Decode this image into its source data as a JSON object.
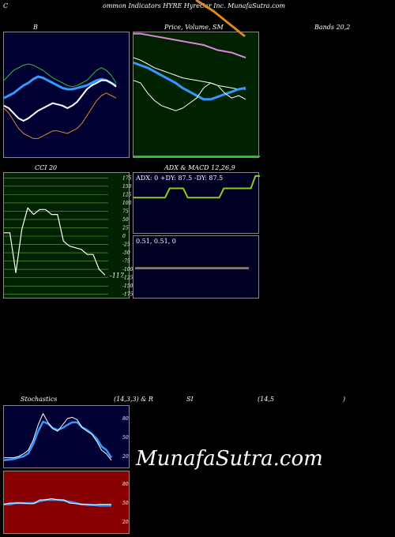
{
  "header": {
    "c": "C",
    "title": "ommon  Indicators HYRE HyreCar Inc. MunafaSutra.com",
    "b": "B",
    "price": "Price,  Volume,  SM",
    "bands": "Bands 20,2",
    "cci": "CCI 20",
    "adx": "ADX  & MACD 12,26,9",
    "stoch": "Stochastics",
    "stoch_params": "(14,3,3) & R",
    "si": "SI",
    "rsi_params": "(14,5",
    "close_paren": ")"
  },
  "watermark": "MunafaSutra.com",
  "colors": {
    "bb_bg": "#000033",
    "price_bg": "#002200",
    "cci_bg": "#002200",
    "adx_bg": "#000022",
    "stoch_bg": "#000033",
    "rsi_bg": "#880000",
    "white": "#ffffff",
    "blue": "#3399ff",
    "green": "#33bb33",
    "orange": "#dd8822",
    "pink": "#dd88dd",
    "yellow_green": "#88cc22"
  },
  "chart_data": [
    {
      "type": "line",
      "name_label": "B",
      "series": [
        {
          "values": [
            0.62,
            0.66,
            0.7,
            0.72,
            0.74,
            0.75,
            0.74,
            0.72,
            0.7,
            0.67,
            0.64,
            0.62,
            0.6,
            0.58,
            0.57,
            0.58,
            0.6,
            0.62,
            0.66,
            0.7,
            0.72,
            0.7,
            0.66,
            0.6
          ]
        },
        {
          "values": [
            0.48,
            0.5,
            0.52,
            0.55,
            0.58,
            0.6,
            0.63,
            0.65,
            0.64,
            0.62,
            0.6,
            0.58,
            0.56,
            0.55,
            0.55,
            0.56,
            0.57,
            0.58,
            0.6,
            0.62,
            0.63,
            0.62,
            0.6,
            0.58
          ]
        },
        {
          "values": [
            0.42,
            0.4,
            0.36,
            0.32,
            0.3,
            0.32,
            0.35,
            0.38,
            0.4,
            0.42,
            0.44,
            0.43,
            0.42,
            0.4,
            0.42,
            0.45,
            0.5,
            0.55,
            0.58,
            0.6,
            0.62,
            0.62,
            0.6,
            0.57
          ]
        },
        {
          "values": [
            0.4,
            0.36,
            0.3,
            0.24,
            0.2,
            0.18,
            0.16,
            0.16,
            0.18,
            0.2,
            0.22,
            0.22,
            0.21,
            0.2,
            0.22,
            0.24,
            0.28,
            0.34,
            0.4,
            0.46,
            0.5,
            0.52,
            0.5,
            0.48
          ]
        }
      ]
    },
    {
      "type": "line",
      "name_label": "Price, Volume, SMA",
      "series": [
        {
          "values": [
            0.99,
            0.99,
            0.98,
            0.97,
            0.96,
            0.95,
            0.94,
            0.93,
            0.92,
            0.91,
            0.9,
            0.88,
            0.86,
            0.85,
            0.84,
            0.82,
            0.8
          ]
        },
        {
          "values": [
            0.8,
            0.78,
            0.75,
            0.72,
            0.7,
            0.68,
            0.66,
            0.64,
            0.63,
            0.62,
            0.61,
            0.6,
            0.58,
            0.57,
            0.56,
            0.55,
            0.55
          ]
        },
        {
          "values": [
            0.76,
            0.74,
            0.72,
            0.69,
            0.66,
            0.63,
            0.6,
            0.56,
            0.53,
            0.5,
            0.47,
            0.47,
            0.49,
            0.51,
            0.53,
            0.55,
            0.56
          ]
        },
        {
          "values": [
            0.62,
            0.6,
            0.52,
            0.46,
            0.42,
            0.4,
            0.38,
            0.4,
            0.44,
            0.48,
            0.56,
            0.6,
            0.58,
            0.52,
            0.48,
            0.5,
            0.47
          ]
        }
      ]
    },
    {
      "type": "line",
      "name_label": "CCI 20",
      "yticks": [
        "175",
        "150",
        "125",
        "100",
        "75",
        "50",
        "25",
        "0",
        "-25",
        "-50",
        "-75",
        "-100",
        "-125",
        "-150",
        "-175"
      ],
      "last_label": "-117",
      "values": [
        10,
        10,
        -110,
        20,
        85,
        65,
        80,
        80,
        65,
        65,
        -15,
        -30,
        -35,
        -40,
        -55,
        -55,
        -100,
        -117
      ]
    },
    {
      "type": "line",
      "name_label": "ADX",
      "text": "ADX: 0  +DY: 87.5 -DY: 87.5",
      "values": [
        0.6,
        0.6,
        0.6,
        0.6,
        0.6,
        0.6,
        0.6,
        0.6,
        0.75,
        0.75,
        0.75,
        0.75,
        0.6,
        0.6,
        0.6,
        0.6,
        0.6,
        0.6,
        0.6,
        0.6,
        0.75,
        0.75,
        0.75,
        0.75,
        0.75,
        0.75,
        0.75,
        0.95,
        0.95
      ]
    },
    {
      "type": "line",
      "name_label": "MACD",
      "text": "0.51,  0.51,  0",
      "values": [
        0.51,
        0.51
      ]
    },
    {
      "type": "line",
      "name_label": "Stochastics",
      "yticks": [
        "80",
        "50",
        "20"
      ],
      "series": [
        {
          "values": [
            18,
            18,
            18,
            20,
            24,
            30,
            46,
            70,
            88,
            74,
            64,
            60,
            70,
            80,
            82,
            78,
            66,
            60,
            55,
            44,
            30,
            24,
            14
          ]
        },
        {
          "values": [
            14,
            15,
            16,
            18,
            20,
            25,
            40,
            60,
            75,
            72,
            65,
            62,
            65,
            70,
            74,
            74,
            66,
            62,
            56,
            48,
            36,
            30,
            18
          ]
        }
      ]
    },
    {
      "type": "line",
      "name_label": "RSI",
      "yticks": [
        "80",
        "50",
        "20"
      ],
      "series": [
        {
          "values": [
            48,
            50,
            50,
            50,
            49,
            49,
            55,
            55,
            57,
            55,
            55,
            50,
            49,
            48,
            48,
            47,
            48,
            48,
            48
          ]
        },
        {
          "values": [
            48,
            48,
            50,
            50,
            50,
            50,
            53,
            55,
            55,
            55,
            54,
            52,
            50,
            48,
            47,
            47,
            46,
            46,
            46
          ]
        }
      ]
    }
  ]
}
